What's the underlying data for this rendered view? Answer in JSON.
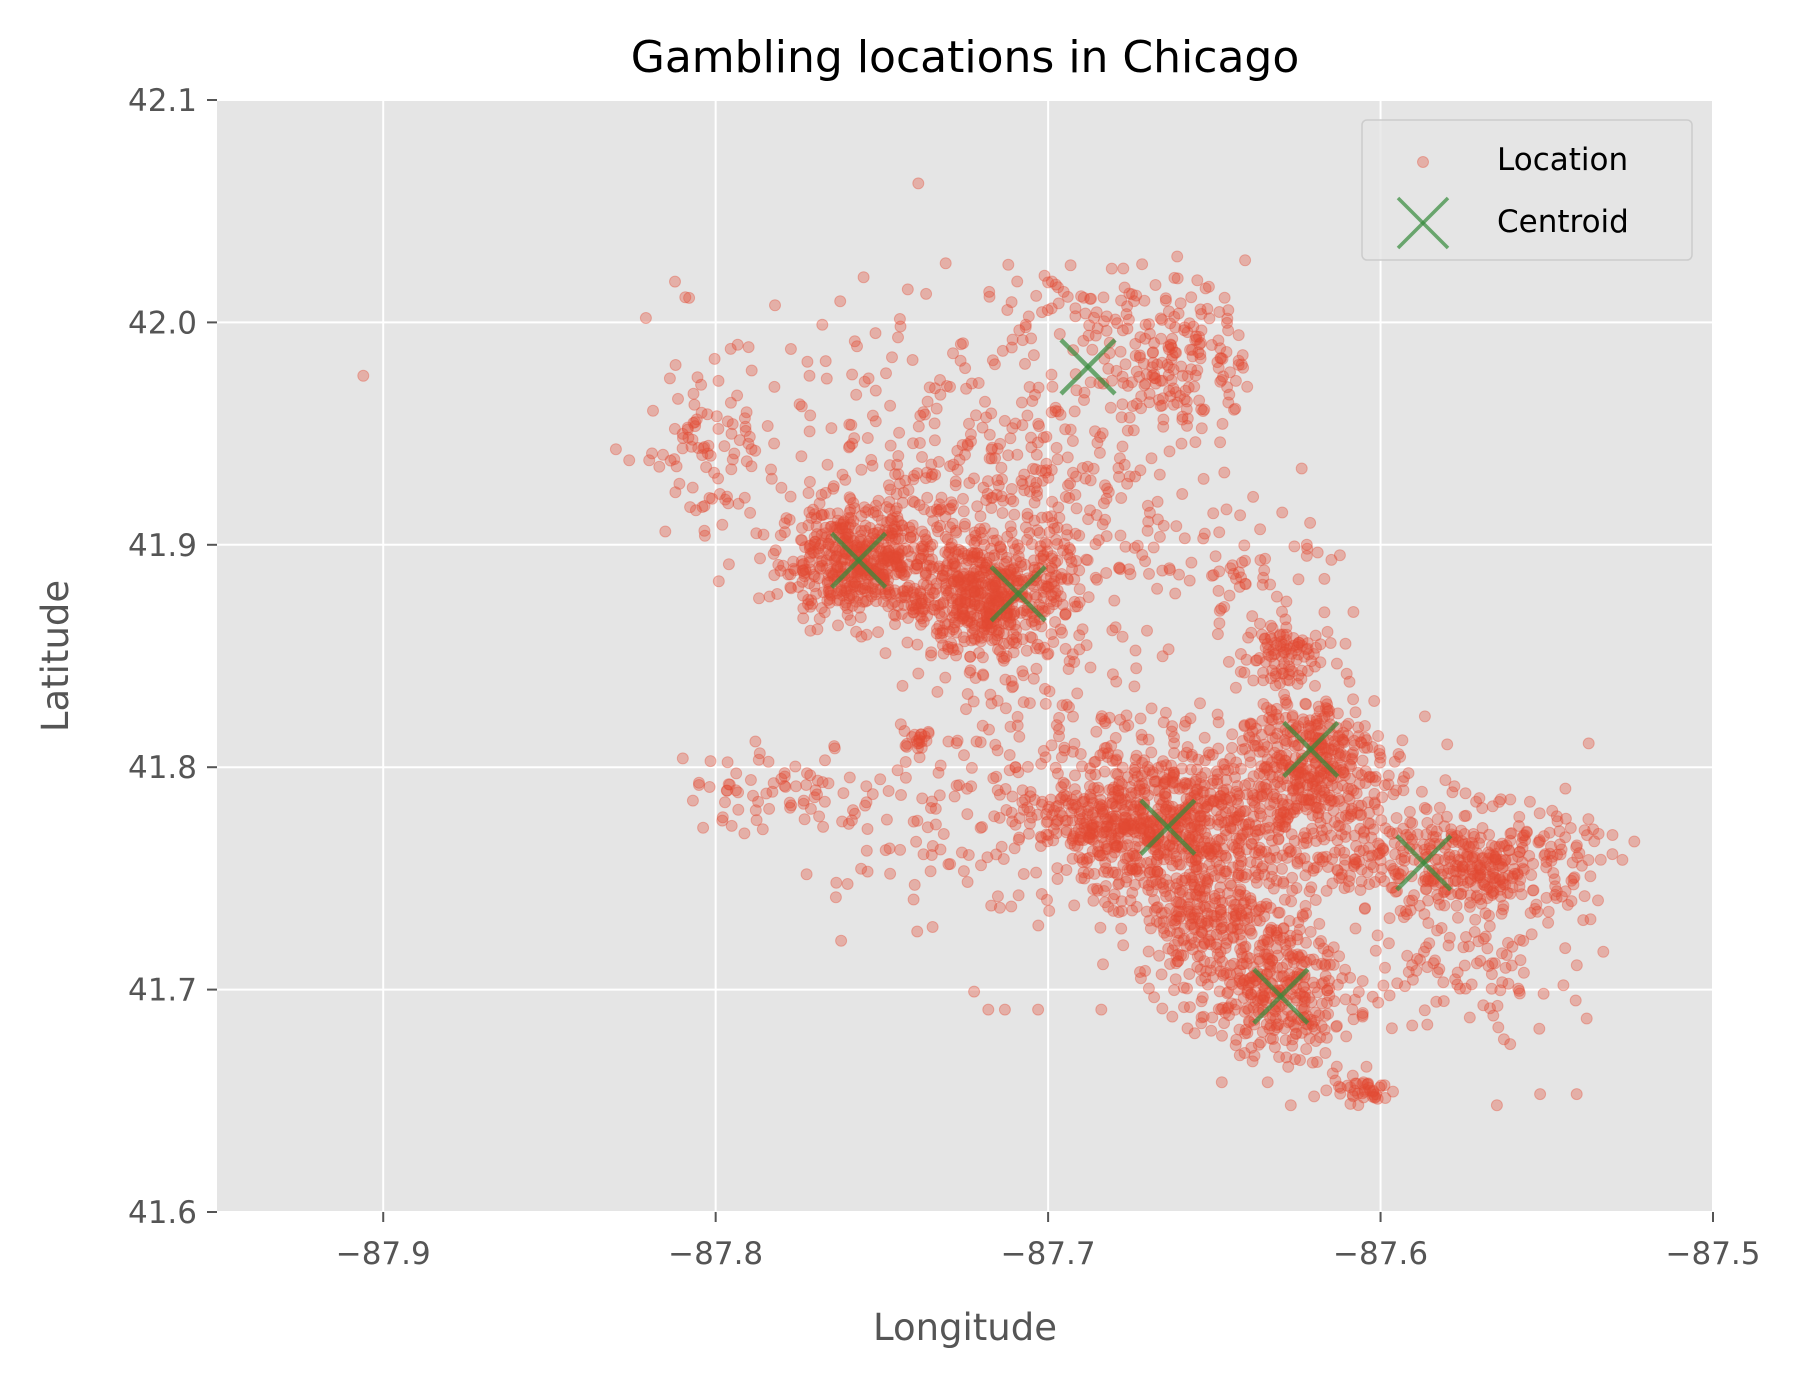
{
  "chart_data": {
    "type": "scatter",
    "title": "Gambling locations in Chicago",
    "xlabel": "Longitude",
    "ylabel": "Latitude",
    "xlim": [
      -87.95,
      -87.5
    ],
    "ylim": [
      41.6,
      42.1
    ],
    "x_ticks": [
      -87.9,
      -87.8,
      -87.7,
      -87.6,
      -87.5
    ],
    "x_tick_labels": [
      "−87.9",
      "−87.8",
      "−87.7",
      "−87.6",
      "−87.5"
    ],
    "y_ticks": [
      41.6,
      41.7,
      41.8,
      41.9,
      42.0,
      42.1
    ],
    "y_tick_labels": [
      "41.6",
      "41.7",
      "41.8",
      "41.9",
      "42.0",
      "42.1"
    ],
    "grid": true,
    "legend_position": "top-right",
    "background_color": "#e5e5e5",
    "series": [
      {
        "name": "Location",
        "marker": "circle",
        "color": "#e24a33",
        "alpha": 0.35,
        "clusters": [
          {
            "center": [
              -87.757,
              41.893
            ],
            "spread": [
              0.012,
              0.013
            ],
            "count": 520
          },
          {
            "center": [
              -87.718,
              41.876
            ],
            "spread": [
              0.013,
              0.014
            ],
            "count": 560
          },
          {
            "center": [
              -87.664,
              41.773
            ],
            "spread": [
              0.017,
              0.019
            ],
            "count": 680
          },
          {
            "center": [
              -87.623,
              41.806
            ],
            "spread": [
              0.011,
              0.014
            ],
            "count": 320
          },
          {
            "center": [
              -87.568,
              41.755
            ],
            "spread": [
              0.016,
              0.013
            ],
            "count": 360
          },
          {
            "center": [
              -87.632,
              41.697
            ],
            "spread": [
              0.012,
              0.014
            ],
            "count": 320
          },
          {
            "center": [
              -87.66,
              41.985
            ],
            "spread": [
              0.01,
              0.018
            ],
            "count": 170
          },
          {
            "center": [
              -87.7,
              41.92
            ],
            "spread": [
              0.022,
              0.028
            ],
            "count": 260
          },
          {
            "center": [
              -87.62,
              41.77
            ],
            "spread": [
              0.02,
              0.02
            ],
            "count": 320
          },
          {
            "center": [
              -87.65,
              41.73
            ],
            "spread": [
              0.012,
              0.014
            ],
            "count": 240
          },
          {
            "center": [
              -87.69,
              41.775
            ],
            "spread": [
              0.01,
              0.007
            ],
            "count": 120
          },
          {
            "center": [
              -87.63,
              41.85
            ],
            "spread": [
              0.006,
              0.008
            ],
            "count": 90
          },
          {
            "center": [
              -87.605,
              41.655
            ],
            "spread": [
              0.005,
              0.003
            ],
            "count": 40
          },
          {
            "center": [
              -87.75,
              41.955
            ],
            "spread": [
              0.03,
              0.03
            ],
            "count": 150
          },
          {
            "center": [
              -87.8,
              41.945
            ],
            "spread": [
              0.01,
              0.02
            ],
            "count": 70
          },
          {
            "center": [
              -87.78,
              41.79
            ],
            "spread": [
              0.015,
              0.01
            ],
            "count": 60
          },
          {
            "center": [
              -87.735,
              41.775
            ],
            "spread": [
              0.02,
              0.025
            ],
            "count": 110
          },
          {
            "center": [
              -87.69,
              42.005
            ],
            "spread": [
              0.015,
              0.01
            ],
            "count": 60
          },
          {
            "center": [
              -87.7,
              41.82
            ],
            "spread": [
              0.015,
              0.02
            ],
            "count": 70
          },
          {
            "center": [
              -87.64,
              41.88
            ],
            "spread": [
              0.02,
              0.02
            ],
            "count": 90
          },
          {
            "center": [
              -87.575,
              41.705
            ],
            "spread": [
              0.015,
              0.015
            ],
            "count": 80
          },
          {
            "center": [
              -87.74,
              41.812
            ],
            "spread": [
              0.003,
              0.002
            ],
            "count": 20
          }
        ],
        "points": [
          [
            -87.906,
            41.976
          ],
          [
            -87.808,
            42.011
          ],
          [
            -87.821,
            42.002
          ],
          [
            -87.83,
            41.943
          ],
          [
            -87.826,
            41.938
          ],
          [
            -87.82,
            41.938
          ],
          [
            -87.804,
            41.917
          ],
          [
            -87.798,
            41.909
          ],
          [
            -87.805,
            41.792
          ],
          [
            -87.798,
            41.776
          ],
          [
            -87.805,
            41.793
          ],
          [
            -87.538,
            41.687
          ],
          [
            -87.533,
            41.717
          ],
          [
            -87.541,
            41.653
          ],
          [
            -87.552,
            41.653
          ],
          [
            -87.565,
            41.648
          ],
          [
            -87.627,
            41.648
          ],
          [
            -87.62,
            41.652
          ],
          [
            -87.545,
            41.702
          ],
          [
            -87.703,
            41.691
          ],
          [
            -87.718,
            41.691
          ],
          [
            -87.713,
            41.691
          ],
          [
            -87.684,
            41.691
          ],
          [
            -87.7,
            42.018
          ],
          [
            -87.662,
            42.02
          ],
          [
            -87.697,
            41.96
          ],
          [
            -87.692,
            41.96
          ],
          [
            -87.668,
            41.975
          ]
        ]
      },
      {
        "name": "Centroid",
        "marker": "x",
        "color": "#348a3a",
        "alpha": 0.7,
        "points": [
          [
            -87.757,
            41.893
          ],
          [
            -87.709,
            41.878
          ],
          [
            -87.688,
            41.98
          ],
          [
            -87.664,
            41.773
          ],
          [
            -87.621,
            41.808
          ],
          [
            -87.587,
            41.757
          ],
          [
            -87.63,
            41.697
          ]
        ]
      }
    ]
  }
}
